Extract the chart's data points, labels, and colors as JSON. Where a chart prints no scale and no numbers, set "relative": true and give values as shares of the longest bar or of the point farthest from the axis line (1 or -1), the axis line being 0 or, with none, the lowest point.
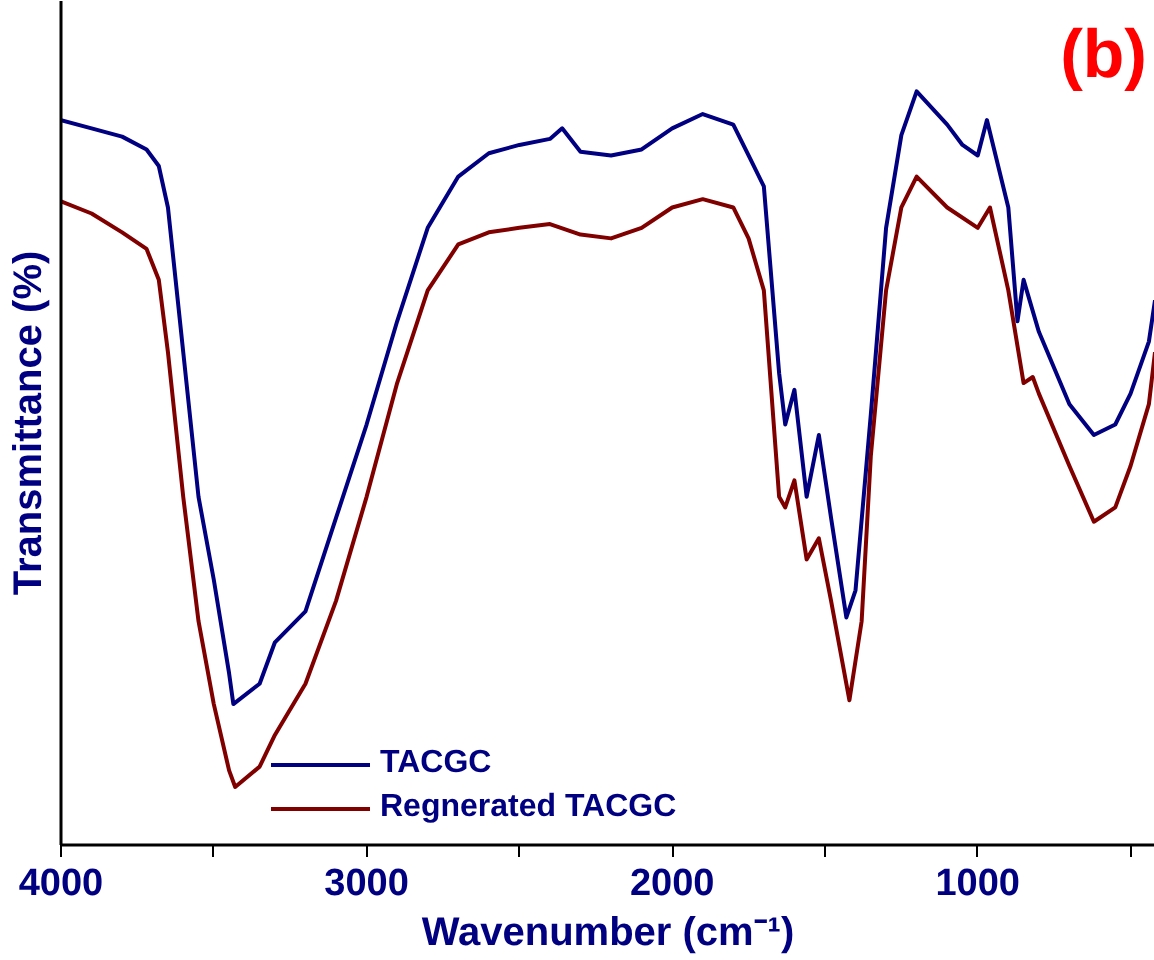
{
  "chart_data": {
    "type": "line",
    "relative": true,
    "xlabel": "Wavenumber (cm⁻¹)",
    "ylabel": "Transmittance (%)",
    "annotations": [
      "(b)"
    ],
    "xlim": [
      4000,
      420
    ],
    "xticks": [
      4000,
      {
        "value": 3500,
        "label": null
      },
      3000,
      {
        "value": 2500,
        "label": null
      },
      2000,
      {
        "value": 1500,
        "label": null
      },
      1000,
      {
        "value": 500,
        "label": null
      }
    ],
    "grid": false,
    "legend": "bottom",
    "marker": "none",
    "line_style": "solid",
    "series": [
      {
        "name": "TACGC",
        "color": "#000080",
        "x": [
          4000,
          3900,
          3800,
          3720,
          3680,
          3650,
          3600,
          3550,
          3500,
          3450,
          3436,
          3350,
          3300,
          3200,
          3100,
          3000,
          2900,
          2800,
          2700,
          2600,
          2500,
          2400,
          2360,
          2300,
          2200,
          2100,
          2000,
          1900,
          1800,
          1750,
          1700,
          1650,
          1630,
          1600,
          1560,
          1520,
          1480,
          1430,
          1400,
          1350,
          1300,
          1250,
          1200,
          1100,
          1050,
          1000,
          970,
          900,
          870,
          850,
          800,
          700,
          620,
          550,
          500,
          440,
          420
        ],
        "values": [
          0.962,
          0.951,
          0.94,
          0.923,
          0.901,
          0.846,
          0.654,
          0.462,
          0.352,
          0.228,
          0.187,
          0.214,
          0.269,
          0.31,
          0.434,
          0.558,
          0.695,
          0.819,
          0.887,
          0.918,
          0.929,
          0.937,
          0.951,
          0.92,
          0.915,
          0.923,
          0.951,
          0.97,
          0.956,
          0.915,
          0.874,
          0.626,
          0.558,
          0.604,
          0.462,
          0.544,
          0.434,
          0.302,
          0.338,
          0.571,
          0.819,
          0.942,
          1.0,
          0.956,
          0.929,
          0.915,
          0.962,
          0.846,
          0.695,
          0.75,
          0.681,
          0.585,
          0.544,
          0.558,
          0.599,
          0.668,
          0.723
        ]
      },
      {
        "name": "Regnerated TACGC",
        "color": "#800000",
        "x": [
          4000,
          3900,
          3800,
          3720,
          3680,
          3650,
          3600,
          3550,
          3500,
          3450,
          3430,
          3350,
          3300,
          3200,
          3100,
          3000,
          2900,
          2800,
          2700,
          2600,
          2500,
          2400,
          2300,
          2200,
          2100,
          2000,
          1900,
          1800,
          1750,
          1700,
          1650,
          1630,
          1600,
          1560,
          1520,
          1480,
          1420,
          1380,
          1350,
          1300,
          1250,
          1200,
          1100,
          1000,
          960,
          900,
          850,
          820,
          800,
          700,
          620,
          550,
          500,
          440,
          420
        ],
        "values": [
          0.854,
          0.838,
          0.813,
          0.791,
          0.75,
          0.654,
          0.462,
          0.297,
          0.187,
          0.099,
          0.077,
          0.104,
          0.146,
          0.214,
          0.324,
          0.462,
          0.613,
          0.736,
          0.797,
          0.813,
          0.819,
          0.824,
          0.81,
          0.805,
          0.819,
          0.846,
          0.857,
          0.846,
          0.805,
          0.736,
          0.462,
          0.448,
          0.484,
          0.379,
          0.407,
          0.324,
          0.192,
          0.297,
          0.516,
          0.736,
          0.846,
          0.887,
          0.846,
          0.819,
          0.846,
          0.736,
          0.613,
          0.621,
          0.599,
          0.503,
          0.429,
          0.448,
          0.503,
          0.585,
          0.654
        ]
      }
    ]
  }
}
